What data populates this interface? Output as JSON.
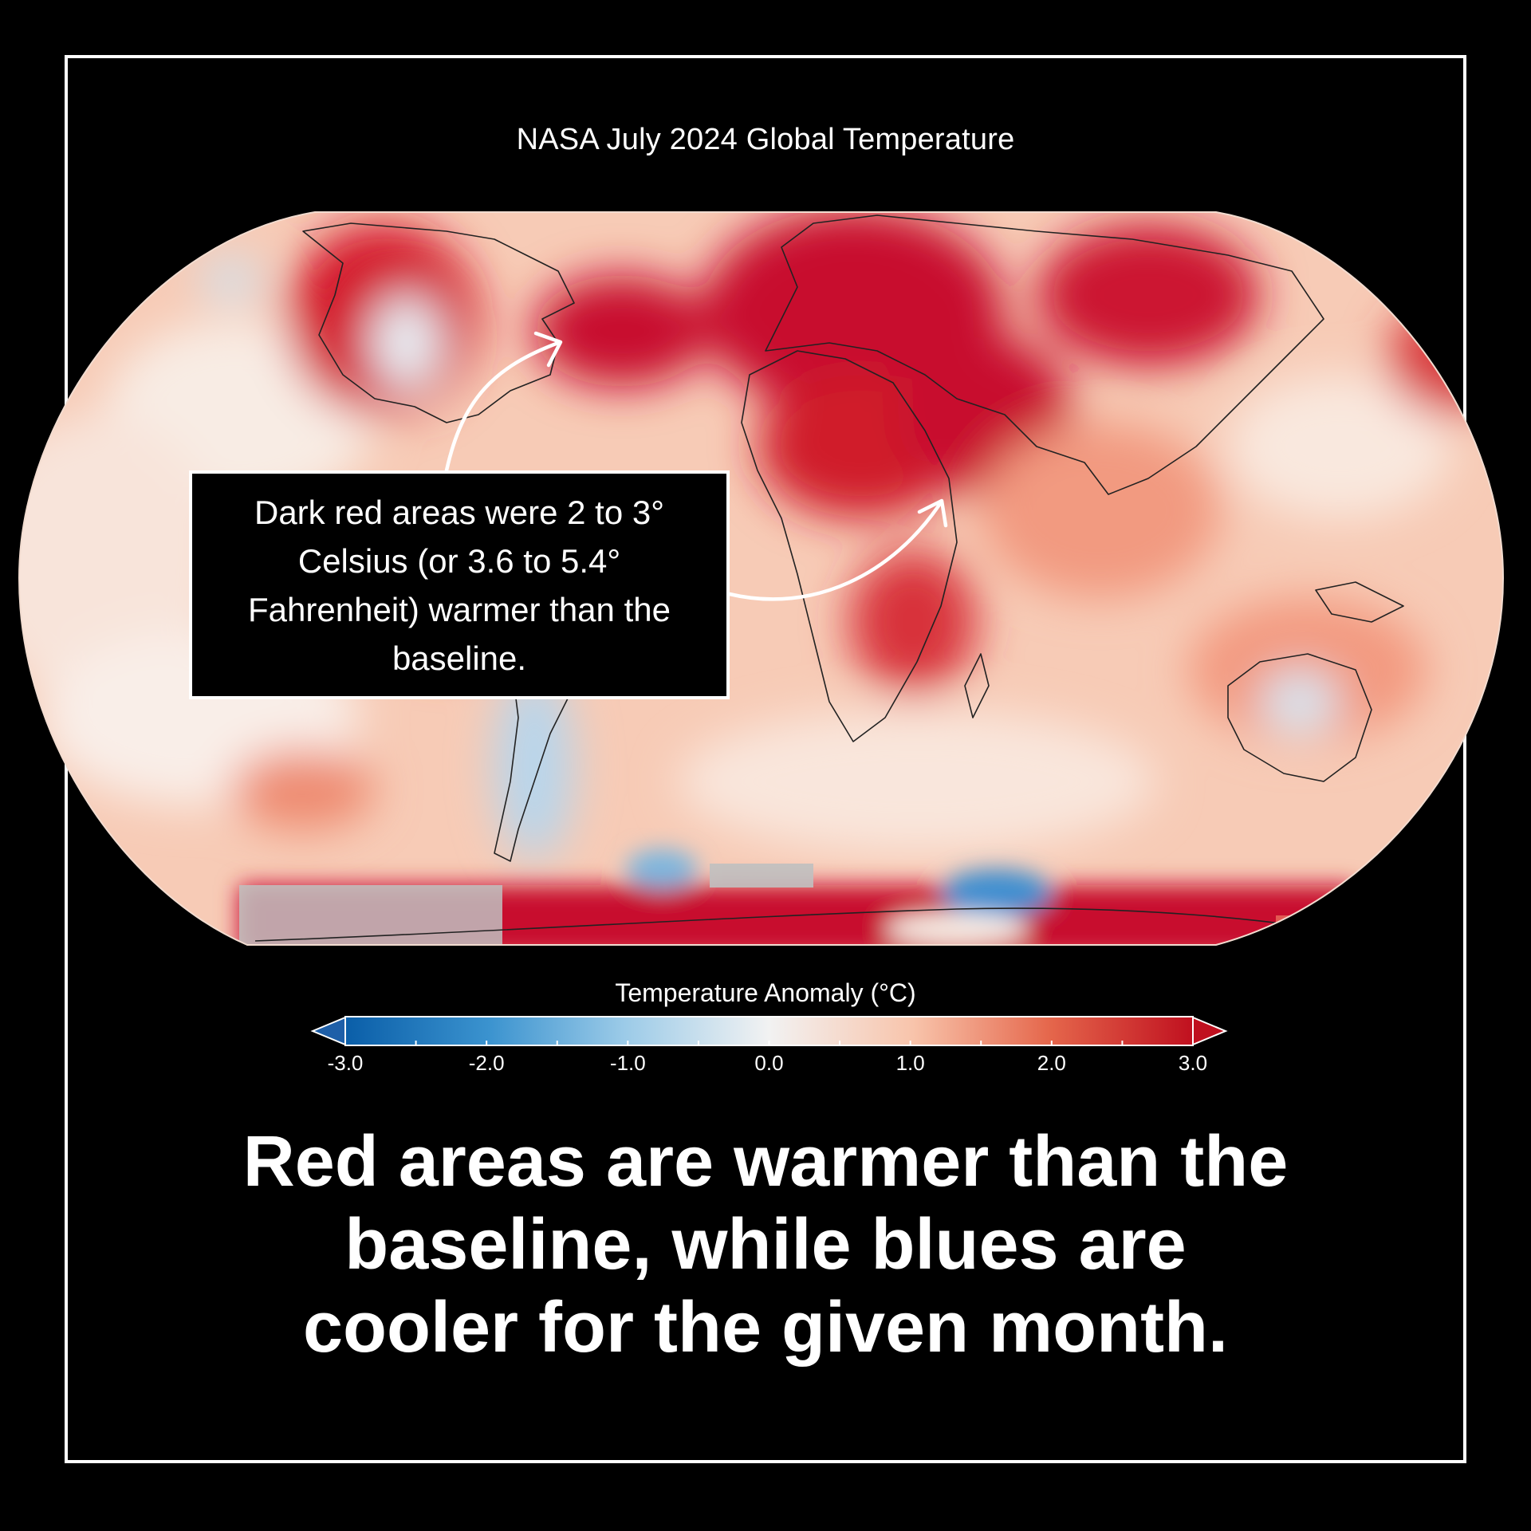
{
  "map": {
    "title": "NASA July 2024 Global Temperature",
    "projection": "Robinson",
    "colors": {
      "warm_dark": "#c8102e",
      "warm": "#e8503a",
      "warm_light": "#f7b8a0",
      "neutral": "#f8ece4",
      "cool_light": "#c9e0f0",
      "cool": "#2b83c6",
      "no_data": "#c0c0c0"
    }
  },
  "callout": {
    "text": "Dark red areas were 2 to 3° Celsius (or 3.6 to 5.4° Fahrenheit) warmer than the baseline."
  },
  "colorbar": {
    "label": "Temperature Anomaly (°C)",
    "ticks": [
      "-3.0",
      "-2.0",
      "-1.0",
      "0.0",
      "1.0",
      "2.0",
      "3.0"
    ],
    "range": [
      -3.0,
      3.0
    ],
    "stops": [
      "#0a5ea8",
      "#3b93cf",
      "#9ccbe8",
      "#f2f2f2",
      "#f8c4ab",
      "#e5674c",
      "#c0101f"
    ]
  },
  "headline": {
    "line1": "Red areas are warmer than the",
    "line2": "baseline, while blues are",
    "line3": "cooler for the given month."
  }
}
